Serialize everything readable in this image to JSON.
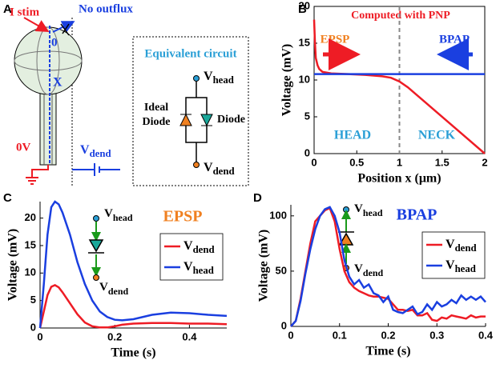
{
  "panel_a": {
    "label": "A",
    "i_stim": "I stim",
    "no_outflux": "No outflux",
    "origin": "0",
    "x_label": "X",
    "ground_v": "0V",
    "v_dend": {
      "base": "V",
      "sub": "dend"
    },
    "box_title": "Equivalent circuit",
    "circuit_top": {
      "base": "V",
      "sub": "head"
    },
    "circuit_bottom": {
      "base": "V",
      "sub": "dend"
    },
    "ideal_diode": [
      "Ideal",
      "Diode"
    ],
    "diode": "Diode"
  },
  "chart_data": [
    {
      "type": "line",
      "label": "B",
      "title": "Computed with PNP",
      "xlabel": "Position x (μm)",
      "ylabel": "Voltage (mV)",
      "xlim": [
        0,
        2
      ],
      "xticks": [
        0,
        0.5,
        1,
        1.5,
        2
      ],
      "ylim": [
        0,
        20
      ],
      "yticks": [
        0,
        5,
        10,
        15,
        20
      ],
      "box": true,
      "vline": 1,
      "annotations": {
        "left": "EPSP",
        "right": "BPAP",
        "head": "HEAD",
        "neck": "NECK"
      },
      "series": [
        {
          "color": "#ee1c25",
          "x": [
            0,
            0.01,
            0.02,
            0.04,
            0.06,
            0.1,
            0.2,
            0.4,
            0.6,
            0.8,
            0.9,
            1,
            1.1,
            1.2,
            1.4,
            1.6,
            1.8,
            2
          ],
          "values": [
            18.2,
            15,
            13,
            12,
            11.5,
            11.1,
            10.9,
            10.8,
            10.7,
            10.5,
            10.3,
            9.8,
            9,
            8,
            6,
            4,
            2,
            0
          ]
        },
        {
          "color": "#1a3fe0",
          "x": [
            0,
            2
          ],
          "values": [
            10.8,
            10.8
          ]
        }
      ]
    },
    {
      "type": "line",
      "label": "C",
      "title": "EPSP",
      "xlabel": "Time (s)",
      "ylabel": "Voltage (mV)",
      "xlim": [
        0,
        0.5
      ],
      "xticks": [
        0,
        0.2,
        0.4
      ],
      "ylim": [
        0,
        23
      ],
      "yticks": [
        0,
        5,
        10,
        15,
        20
      ],
      "box": false,
      "inset": {
        "top": {
          "base": "V",
          "sub": "head"
        },
        "bottom": {
          "base": "V",
          "sub": "dend"
        }
      },
      "x": [
        0,
        0.01,
        0.02,
        0.03,
        0.04,
        0.05,
        0.06,
        0.08,
        0.1,
        0.12,
        0.14,
        0.16,
        0.18,
        0.2,
        0.22,
        0.25,
        0.3,
        0.35,
        0.4,
        0.45,
        0.5
      ],
      "series": [
        {
          "name": {
            "base": "V",
            "sub": "dend"
          },
          "color": "#ee1c25",
          "values": [
            0,
            3,
            6,
            7.5,
            7.8,
            7.4,
            6.5,
            4.5,
            2.5,
            1,
            0.3,
            0.1,
            0.1,
            0.3,
            0.6,
            0.8,
            0.9,
            0.9,
            0.8,
            0.8,
            0.7
          ]
        },
        {
          "name": {
            "base": "V",
            "sub": "head"
          },
          "color": "#1a3fe0",
          "values": [
            0,
            8,
            17,
            22,
            23,
            22.5,
            21,
            17,
            12,
            8,
            5,
            3,
            2,
            1.5,
            1.4,
            1.6,
            2.4,
            2.8,
            2.7,
            2.4,
            2.2
          ]
        }
      ]
    },
    {
      "type": "line",
      "label": "D",
      "title": "BPAP",
      "xlabel": "Time (s)",
      "ylabel": "Voltage (mV)",
      "xlim": [
        0,
        0.4
      ],
      "xticks": [
        0,
        0.1,
        0.2,
        0.3,
        0.4
      ],
      "ylim": [
        0,
        110
      ],
      "yticks": [
        0,
        50,
        100
      ],
      "box": false,
      "inset": {
        "top": {
          "base": "V",
          "sub": "head"
        },
        "bottom": {
          "base": "V",
          "sub": "dend"
        }
      },
      "x": [
        0,
        0.01,
        0.02,
        0.03,
        0.04,
        0.05,
        0.06,
        0.07,
        0.08,
        0.09,
        0.1,
        0.11,
        0.12,
        0.13,
        0.14,
        0.15,
        0.16,
        0.17,
        0.18,
        0.19,
        0.2,
        0.21,
        0.22,
        0.23,
        0.24,
        0.25,
        0.26,
        0.27,
        0.28,
        0.29,
        0.3,
        0.31,
        0.32,
        0.33,
        0.34,
        0.35,
        0.36,
        0.37,
        0.38,
        0.39,
        0.4
      ],
      "series": [
        {
          "name": {
            "base": "V",
            "sub": "dend"
          },
          "color": "#ee1c25",
          "values": [
            0,
            5,
            25,
            50,
            75,
            95,
            100,
            105,
            107,
            95,
            70,
            50,
            40,
            35,
            32,
            30,
            28,
            27,
            27,
            26,
            25,
            20,
            15,
            15,
            14,
            15,
            10,
            10,
            12,
            6,
            5,
            8,
            7,
            10,
            9,
            8,
            7,
            10,
            8,
            9,
            9
          ]
        },
        {
          "name": {
            "base": "V",
            "sub": "head"
          },
          "color": "#1a3fe0",
          "values": [
            0,
            5,
            23,
            48,
            70,
            88,
            100,
            106,
            108,
            100,
            85,
            60,
            45,
            38,
            42,
            35,
            38,
            30,
            28,
            22,
            27,
            15,
            13,
            12,
            15,
            18,
            11,
            13,
            20,
            15,
            22,
            18,
            20,
            24,
            21,
            28,
            24,
            27,
            24,
            27,
            22
          ]
        }
      ]
    }
  ]
}
